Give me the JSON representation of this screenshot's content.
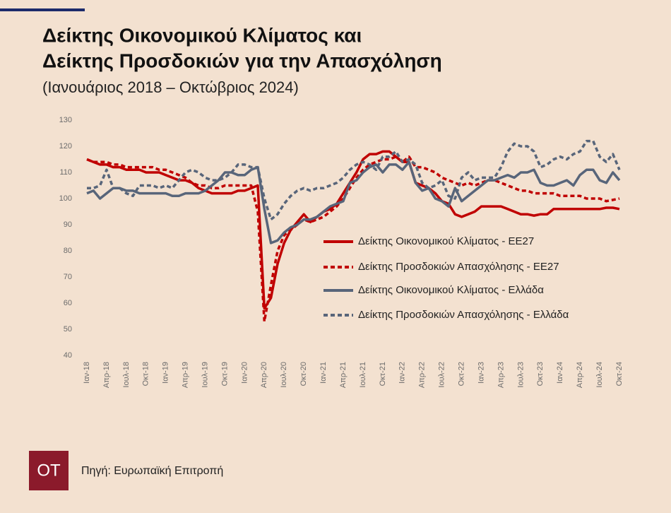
{
  "chart_data": {
    "type": "line",
    "title": [
      "Δείκτης Οικονομικού Κλίματος και",
      "Δείκτης Προσδοκιών για την Απασχόληση"
    ],
    "subtitle": "(Ιανουάριος 2018 – Οκτώβριος 2024)",
    "source": "Πηγή: Ευρωπαϊκή Επιτροπή",
    "logo": "OT",
    "categories": [
      "Ιαν-18",
      null,
      null,
      "Απρ-18",
      null,
      null,
      "Ιουλ-18",
      null,
      null,
      "Οκτ-18",
      null,
      null,
      "Ιαν-19",
      null,
      null,
      "Απρ-19",
      null,
      null,
      "Ιουλ-19",
      null,
      null,
      "Οκτ-19",
      null,
      null,
      "Ιαν-20",
      null,
      null,
      "Απρ-20",
      null,
      null,
      "Ιουλ-20",
      null,
      null,
      "Οκτ-20",
      null,
      null,
      "Ιαν-21",
      null,
      null,
      "Απρ-21",
      null,
      null,
      "Ιουλ-21",
      null,
      null,
      "Οκτ-21",
      null,
      null,
      "Ιαν-22",
      null,
      null,
      "Απρ-22",
      null,
      null,
      "Ιουλ-22",
      null,
      null,
      "Οκτ-22",
      null,
      null,
      "Ιαν-23",
      null,
      null,
      "Απρ-23",
      null,
      null,
      "Ιουλ-23",
      null,
      null,
      "Οκτ-23",
      null,
      null,
      "Ιαν-24",
      null,
      null,
      "Απρ-24",
      null,
      null,
      "Ιουλ-24",
      null,
      null,
      "Οκτ-24"
    ],
    "series": [
      {
        "name": "Δείκτης Οικονομικού Κλίματος - ΕΕ27",
        "color": "#c00000",
        "dash": false,
        "values": [
          115,
          114,
          113,
          113,
          112,
          112,
          111,
          111,
          111,
          110,
          110,
          110,
          109,
          108,
          107,
          107,
          106,
          104,
          103,
          102,
          102,
          102,
          102,
          103,
          103,
          104,
          105,
          58,
          62,
          75,
          83,
          88,
          91,
          94,
          91,
          93,
          95,
          96,
          98,
          102,
          106,
          110,
          115,
          117,
          117,
          118,
          118,
          116,
          114,
          114,
          106,
          105,
          104,
          102,
          99,
          98,
          94,
          93,
          94,
          95,
          97,
          97,
          97,
          97,
          96,
          95,
          94,
          94,
          93.5,
          94,
          94,
          96,
          96,
          96,
          96,
          96,
          96,
          96,
          96,
          96.5,
          96.5,
          96
        ]
      },
      {
        "name": "Δείκτης Προσδοκιών Απασχόλησης - ΕΕ27",
        "color": "#c00000",
        "dash": true,
        "values": [
          115,
          114,
          114,
          114,
          113,
          113,
          112,
          112,
          112,
          112,
          112,
          111,
          111,
          110,
          109,
          108,
          106,
          105,
          105,
          104,
          104,
          105,
          105,
          105,
          105,
          105,
          95,
          53,
          67,
          80,
          86,
          88,
          90,
          92,
          91,
          92,
          93,
          95,
          97,
          100,
          104,
          108,
          111,
          113,
          114,
          115,
          115,
          116,
          114,
          116,
          112,
          112,
          111,
          110,
          108,
          107,
          106,
          105,
          106,
          105,
          106,
          107,
          107,
          106,
          105,
          104,
          103,
          103,
          102,
          102,
          102,
          102,
          101,
          101,
          101,
          101,
          100,
          100,
          100,
          99,
          99.5,
          100
        ]
      },
      {
        "name": "Δείκτης Οικονομικού Κλίματος - Ελλάδα",
        "color": "#58657a",
        "dash": false,
        "values": [
          102,
          103,
          100,
          102,
          104,
          104,
          103,
          103,
          102,
          102,
          102,
          102,
          102,
          101,
          101,
          102,
          102,
          102,
          103,
          105,
          107,
          110,
          110,
          109,
          109,
          111,
          112,
          96,
          83,
          84,
          87,
          89,
          90,
          92,
          92,
          93,
          95,
          97,
          98,
          99,
          106,
          107,
          110,
          112,
          113,
          110,
          113,
          113,
          111,
          114,
          106,
          103,
          104,
          100,
          99,
          97,
          104,
          99,
          101,
          103,
          105,
          107,
          107,
          108,
          109,
          108,
          110,
          110,
          111,
          106,
          105,
          105,
          106,
          107,
          105,
          109,
          111,
          111,
          107,
          106,
          110,
          107
        ]
      },
      {
        "name": "Δείκτης Προσδοκιών Απασχόλησης - Ελλάδα",
        "color": "#58657a",
        "dash": true,
        "values": [
          104,
          104,
          105,
          111,
          104,
          104,
          102,
          101,
          105,
          105,
          105,
          104,
          105,
          104,
          107,
          110,
          111,
          110,
          108,
          107,
          107,
          108,
          110,
          113,
          113,
          112,
          112,
          100,
          92,
          94,
          98,
          101,
          103,
          104,
          103,
          104,
          104,
          105,
          106,
          108,
          111,
          113,
          114,
          113,
          111,
          116,
          116,
          118,
          114,
          115,
          113,
          106,
          104,
          105,
          107,
          101,
          100,
          108,
          110,
          107,
          108,
          108,
          108,
          112,
          118,
          121,
          120,
          120,
          118,
          112,
          113,
          115,
          116,
          115,
          117,
          118,
          122,
          122,
          116,
          114,
          117,
          111
        ]
      }
    ],
    "ylim": [
      40,
      130
    ],
    "yticks": [
      40,
      50,
      60,
      70,
      80,
      90,
      100,
      110,
      120,
      130
    ],
    "grid": false
  }
}
